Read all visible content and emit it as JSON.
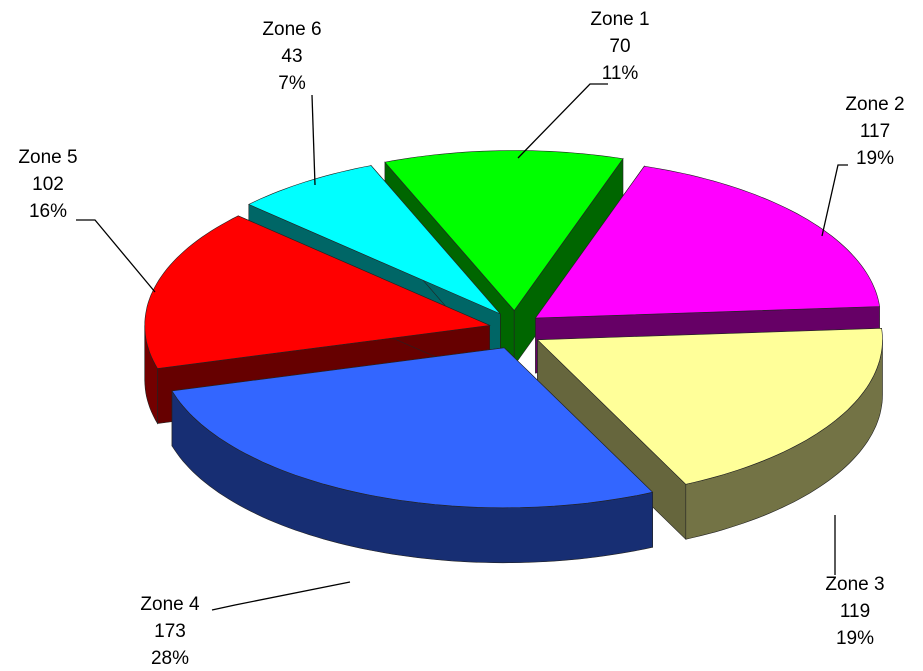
{
  "chart_data": {
    "type": "pie3d",
    "categories": [
      "Zone 1",
      "Zone 2",
      "Zone 3",
      "Zone 4",
      "Zone 5",
      "Zone 6"
    ],
    "values": [
      70,
      117,
      119,
      173,
      102,
      43
    ],
    "percent_labels": [
      "11%",
      "19%",
      "19%",
      "28%",
      "16%",
      "7%"
    ],
    "colors": [
      "#00ff00",
      "#ff00ff",
      "#ffff99",
      "#3366ff",
      "#ff0000",
      "#00ffff"
    ]
  }
}
